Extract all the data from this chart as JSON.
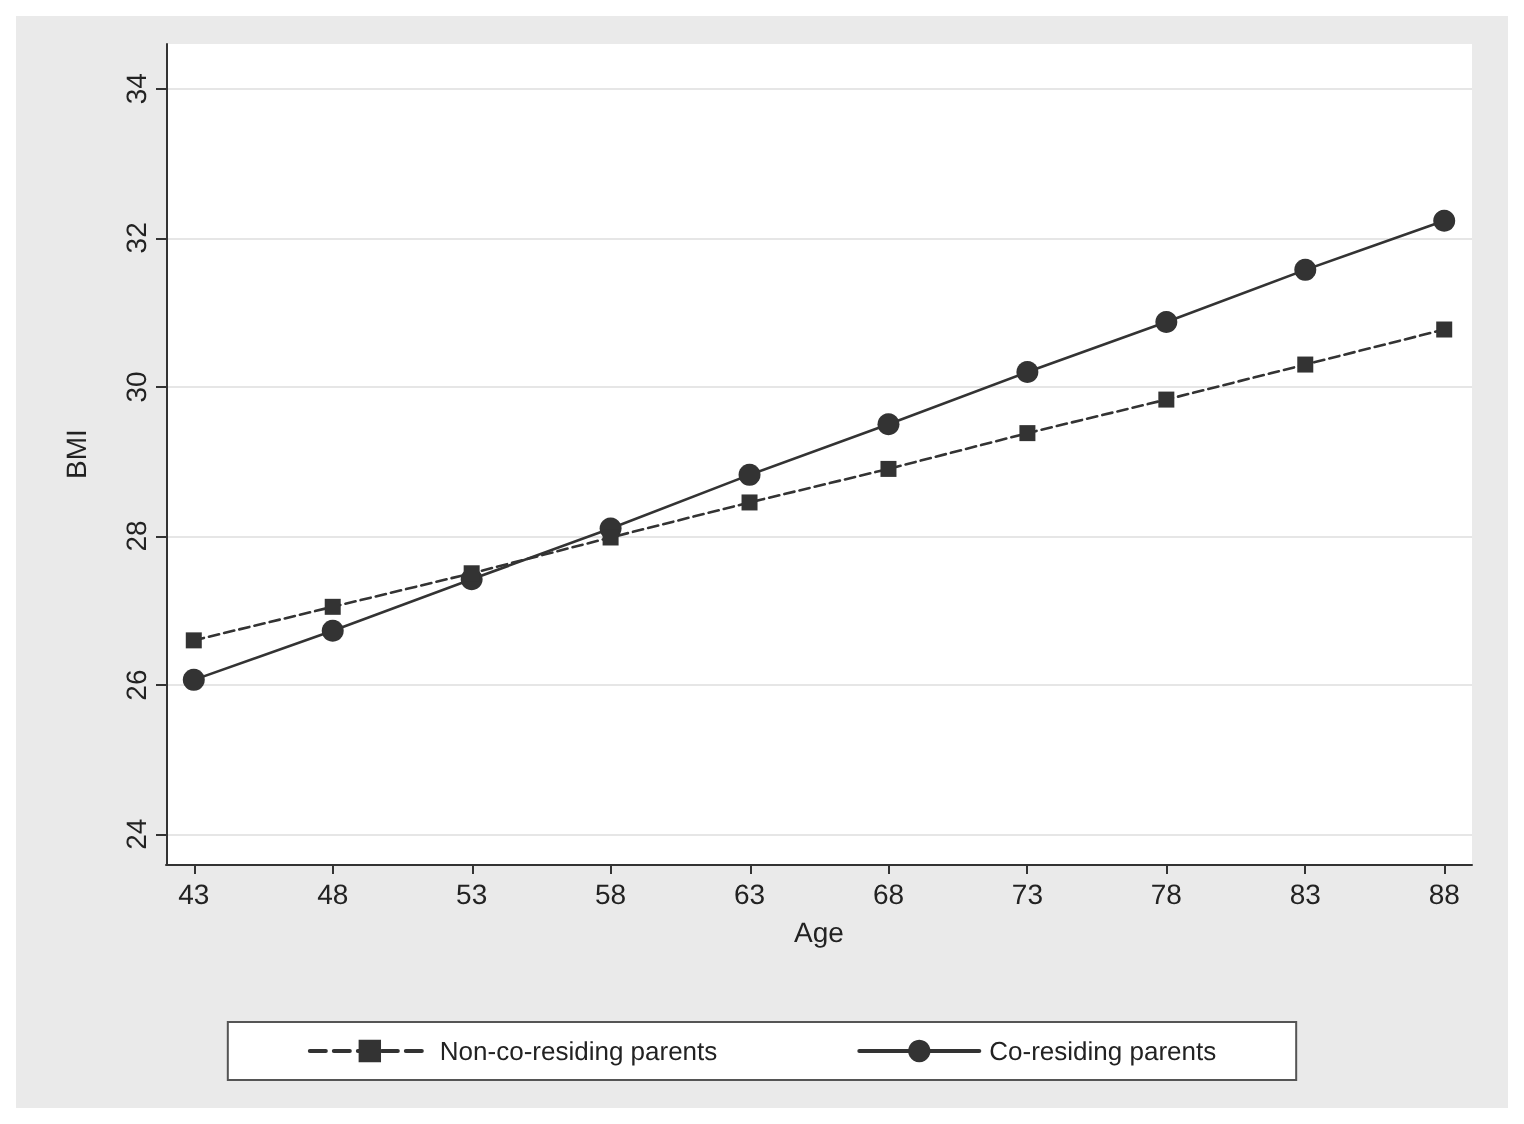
{
  "chart_data": {
    "type": "line",
    "xlabel": "Age",
    "ylabel": "BMI",
    "x": [
      43,
      48,
      53,
      58,
      63,
      68,
      73,
      78,
      83,
      88
    ],
    "series": [
      {
        "name": "Non-co-residing parents",
        "color": "#333333",
        "marker": "square",
        "line_style": "dashed",
        "values": [
          26.6,
          27.05,
          27.5,
          27.98,
          28.45,
          28.9,
          29.38,
          29.83,
          30.3,
          30.77
        ]
      },
      {
        "name": "Co-residing parents",
        "color": "#333333",
        "marker": "circle",
        "line_style": "solid",
        "values": [
          26.07,
          26.73,
          27.42,
          28.1,
          28.82,
          29.5,
          30.2,
          30.87,
          31.57,
          32.23
        ]
      }
    ],
    "xlim": [
      42,
      89
    ],
    "xticks": [
      43,
      48,
      53,
      58,
      63,
      68,
      73,
      78,
      83,
      88
    ],
    "ylim": [
      23.6,
      34.6
    ],
    "yticks": [
      24,
      26,
      28,
      30,
      32,
      34
    ],
    "grid": "y",
    "legend": "bottom"
  }
}
